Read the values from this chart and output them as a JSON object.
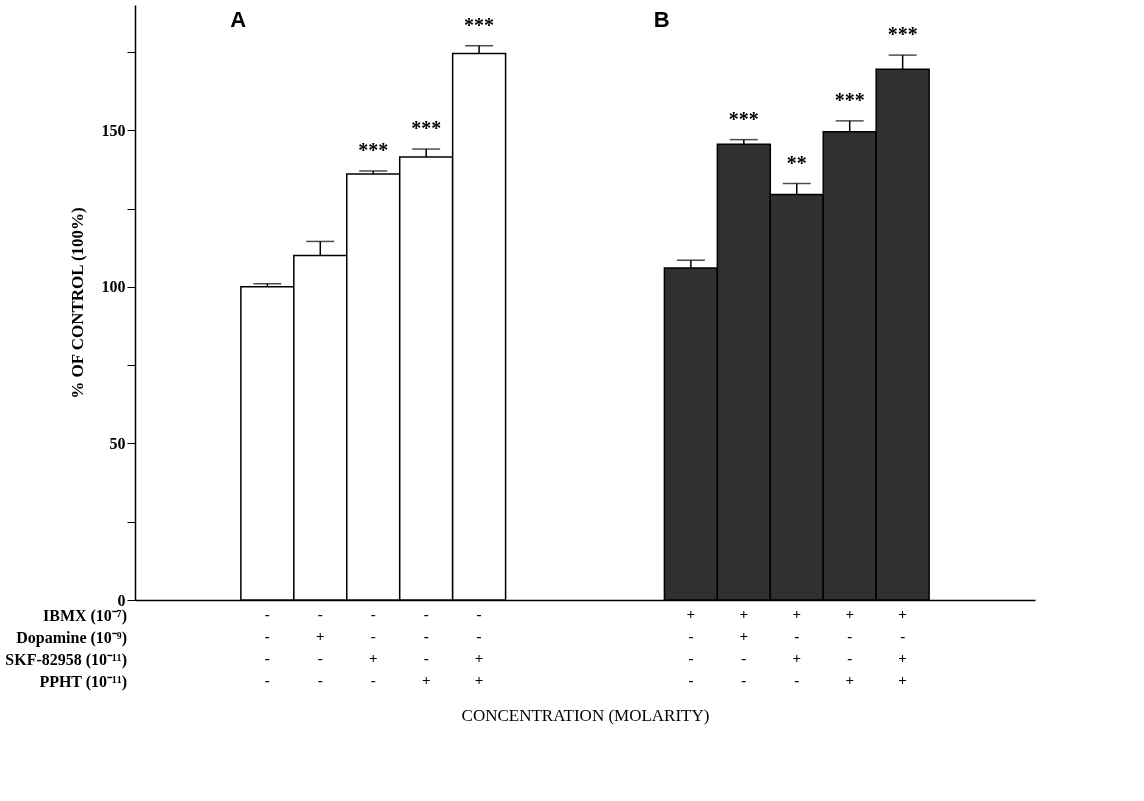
{
  "chart_data": {
    "type": "bar",
    "xlabel": "CONCENTRATION (MOLARITY)",
    "ylabel": "% OF CONTROL (100%)",
    "categories": [
      null,
      null,
      "- - - -",
      "- + - -",
      "- - + -",
      "- - - +",
      "- - + +",
      null,
      null,
      null,
      "+ - - -",
      "+ + - -",
      "+ - + -",
      "+ - - +",
      "+ - + +",
      null,
      null
    ],
    "values": [
      null,
      null,
      100,
      110,
      136,
      141.5,
      174.5,
      null,
      null,
      null,
      106,
      145.5,
      129.5,
      149.5,
      169.5,
      null,
      null
    ],
    "errors": [
      null,
      null,
      1,
      4.5,
      1,
      2.5,
      2.5,
      null,
      null,
      null,
      2.5,
      1.5,
      3.5,
      3.5,
      4.5,
      null,
      null
    ],
    "colors": [
      null,
      null,
      "#ffffff",
      "#ffffff",
      "#ffffff",
      "#ffffff",
      "#ffffff",
      null,
      null,
      null,
      "#303030",
      "#303030",
      "#303030",
      "#303030",
      "#303030",
      null,
      null
    ],
    "ylim": [
      0,
      190
    ],
    "yticks": [
      0,
      {
        "value": 25,
        "label": null
      },
      50,
      {
        "value": 75,
        "label": null
      },
      100,
      {
        "value": 125,
        "label": null
      },
      150,
      {
        "value": 175,
        "label": null
      }
    ],
    "grid": false,
    "value_labels": [
      null,
      null,
      null,
      null,
      "***",
      "***",
      "***",
      null,
      null,
      null,
      null,
      "***",
      "**",
      "***",
      "***",
      null,
      null
    ],
    "annotations": [
      "A",
      "B",
      "IBMX (10⁻⁷)",
      "Dopamine (10⁻⁹)",
      "SKF-82958 (10⁻¹¹)",
      "PPHT (10⁻¹¹)"
    ]
  }
}
